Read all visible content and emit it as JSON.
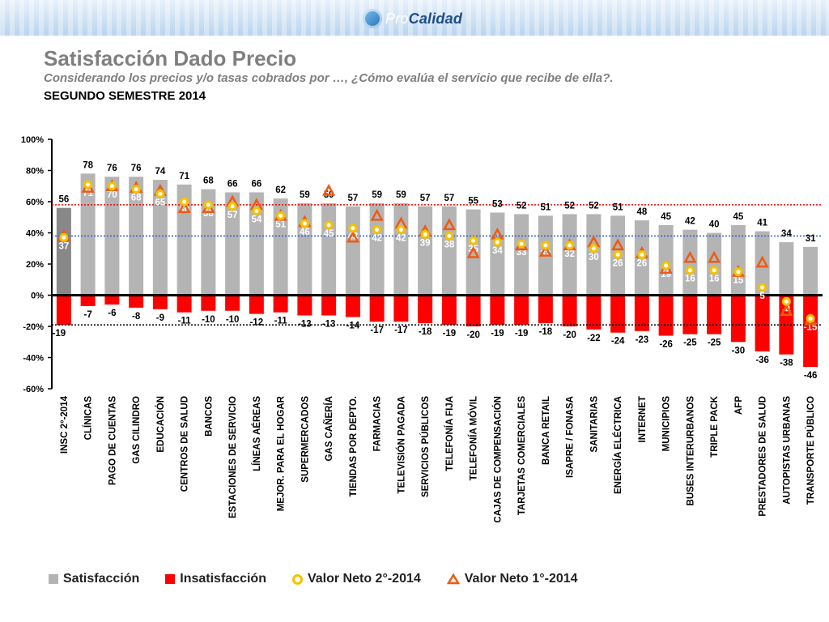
{
  "header": {
    "logo_text_pro": "Pro",
    "logo_text_calidad": "Calidad"
  },
  "page": {
    "title": "Satisfacción Dado Precio",
    "subtitle": "Considerando los precios y/o tasas cobrados por …, ¿Cómo evalúa el servicio que recibe de ella?.",
    "period": "SEGUNDO SEMESTRE 2014"
  },
  "colors": {
    "satisfaction": "#b4b4b4",
    "satisfaction_first": "#888888",
    "insatisfaction": "#ff0000",
    "neto2": "#f5c200",
    "neto1": "#f05a10",
    "ref_red": "#ff0000",
    "ref_blue": "#3060d0"
  },
  "legend": [
    {
      "label": "Satisfacción",
      "icon": "grey-square-icon"
    },
    {
      "label": "Insatisfacción",
      "icon": "red-square-icon"
    },
    {
      "label": "Valor Neto 2°-2014",
      "icon": "yellow-circle-icon"
    },
    {
      "label": "Valor Neto 1°-2014",
      "icon": "orange-triangle-icon"
    }
  ],
  "chart_data": {
    "type": "bar",
    "ylim": [
      -60,
      100
    ],
    "yticks": [
      "100%",
      "80%",
      "60%",
      "40%",
      "20%",
      "0%",
      "-20%",
      "-40%",
      "-60%"
    ],
    "ytick_values": [
      100,
      80,
      60,
      40,
      20,
      0,
      -20,
      -40,
      -60
    ],
    "reference_lines": {
      "red_upper": 58,
      "blue_middle": 38,
      "black_lower": -19
    },
    "categories": [
      "INSC 2°-2014",
      "CLÍNICAS",
      "PAGO DE CUENTAS",
      "GAS CILINDRO",
      "EDUCACIÓN",
      "CENTROS DE SALUD",
      "BANCOS",
      "ESTACIONES DE SERVICIO",
      "LÍNEAS AÉREAS",
      "MEJOR. PARA EL HOGAR",
      "SUPERMERCADOS",
      "GAS CAÑERÍA",
      "TIENDAS POR DEPTO.",
      "FARMACIAS",
      "TELEVISIÓN PAGADA",
      "SERVICIOS PÚBLICOS",
      "TELEFONÍA FIJA",
      "TELEFONÍA MÓVIL",
      "CAJAS DE COMPENSACIÓN",
      "TARJETAS COMERCIALES",
      "BANCA RETAIL",
      "ISAPRE / FONASA",
      "SANITARIAS",
      "ENERGÍA ELÉCTRICA",
      "INTERNET",
      "MUNICIPIOS",
      "BUSES INTERURBANOS",
      "TRIPLE PACK",
      "AFP",
      "PRESTADORES DE SALUD",
      "AUTOPISTAS URBANAS",
      "TRANSPORTE PÚBLICO"
    ],
    "series": [
      {
        "name": "Satisfacción",
        "values": [
          56,
          78,
          76,
          76,
          74,
          71,
          68,
          66,
          66,
          62,
          59,
          59,
          57,
          59,
          59,
          57,
          57,
          55,
          53,
          52,
          51,
          52,
          52,
          51,
          48,
          45,
          42,
          40,
          45,
          41,
          34,
          31
        ]
      },
      {
        "name": "Insatisfacción",
        "values": [
          -19,
          -7,
          -6,
          -8,
          -9,
          -11,
          -10,
          -10,
          -12,
          -11,
          -13,
          -13,
          -14,
          -17,
          -17,
          -18,
          -19,
          -20,
          -19,
          -19,
          -18,
          -20,
          -22,
          -24,
          -23,
          -26,
          -25,
          -25,
          -30,
          -36,
          -38,
          -46
        ]
      },
      {
        "name": "Valor Neto 2°-2014",
        "values": [
          37,
          71,
          70,
          68,
          65,
          60,
          58,
          57,
          54,
          51,
          46,
          45,
          43,
          42,
          42,
          39,
          38,
          35,
          34,
          33,
          32,
          32,
          30,
          26,
          26,
          19,
          16,
          16,
          15,
          5,
          -4,
          -15
        ]
      },
      {
        "name": "Valor Neto 1°-2014",
        "values": [
          38,
          69,
          70,
          69,
          67,
          56,
          56,
          60,
          58,
          51,
          47,
          67,
          37,
          51,
          46,
          41,
          45,
          27,
          39,
          32,
          28,
          32,
          34,
          32,
          27,
          17,
          24,
          24,
          15,
          21,
          -10,
          -16
        ]
      }
    ],
    "satisfaction_labels": [
      "56",
      "78",
      "76",
      "76",
      "74",
      "71",
      "68",
      "66",
      "66",
      "62",
      "59",
      "59",
      "57",
      "59",
      "59",
      "57",
      "57",
      "55",
      "53",
      "52",
      "51",
      "52",
      "52",
      "51",
      "48",
      "45",
      "42",
      "40",
      "45",
      "41",
      "34",
      "31"
    ],
    "insatisfaction_labels": [
      "-19",
      "-7",
      "-6",
      "-8",
      "-9",
      "-11",
      "-10",
      "-10",
      "-12",
      "-11",
      "-13",
      "-13",
      "-14",
      "-17",
      "-17",
      "-18",
      "-19",
      "-20",
      "-19",
      "-19",
      "-18",
      "-20",
      "-22",
      "-24",
      "-23",
      "-26",
      "-25",
      "-25",
      "-30",
      "-36",
      "-38",
      "-46"
    ],
    "neto_labels": [
      "37",
      "71",
      "70",
      "68",
      "65",
      "60",
      "58",
      "57",
      "54",
      "51",
      "46",
      "45",
      "43",
      "42",
      "42",
      "39",
      "38",
      "35",
      "34",
      "33",
      "32",
      "32",
      "30",
      "26",
      "26",
      "19",
      "16",
      "16",
      "15",
      "5",
      "-4",
      "-15"
    ]
  }
}
